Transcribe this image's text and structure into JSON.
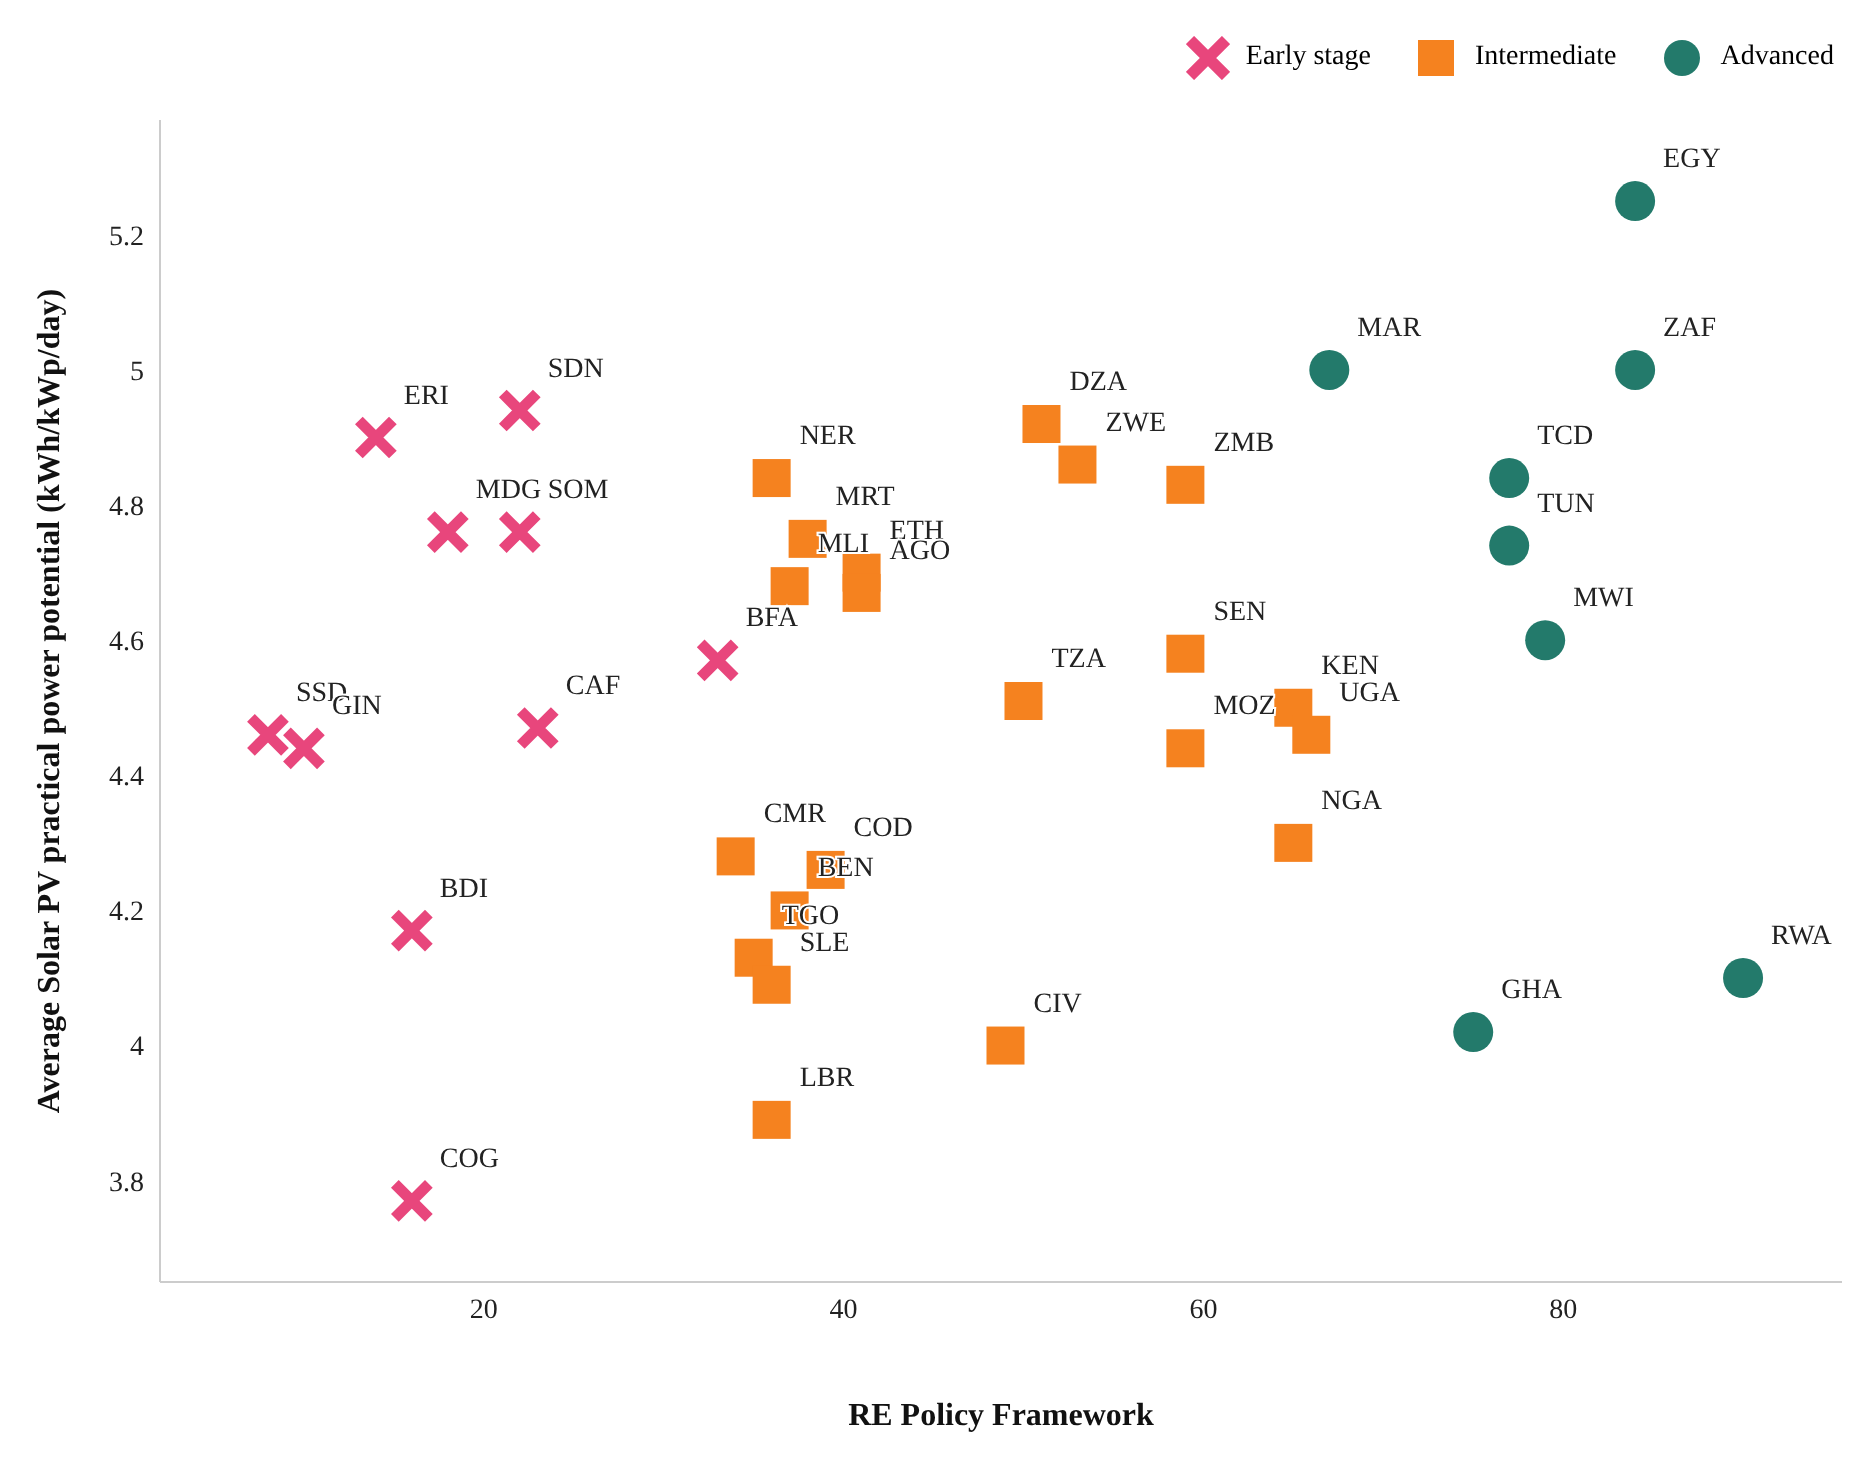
{
  "chart_data": {
    "type": "scatter",
    "xlabel": "RE Policy Framework",
    "ylabel": "Average Solar PV practical power potential (kWh/kWp/day)",
    "xlim": [
      2,
      95.5
    ],
    "ylim": [
      3.65,
      5.37
    ],
    "xticks": [
      20,
      40,
      60,
      80
    ],
    "yticks": [
      3.8,
      4,
      4.2,
      4.4,
      4.6,
      4.8,
      5,
      5.2
    ],
    "grid": false,
    "legend": "top right",
    "series": [
      {
        "name": "Early stage",
        "color": "#e8467c",
        "marker": "cross",
        "x": [
          14,
          22,
          18,
          22,
          33,
          8,
          10,
          23,
          16,
          16
        ],
        "values": [
          4.9,
          4.94,
          4.76,
          4.76,
          4.57,
          4.46,
          4.44,
          4.47,
          4.17,
          3.77
        ]
      },
      {
        "name": "Intermediate",
        "color": "#f5821f",
        "marker": "square",
        "x": [
          36,
          38,
          37,
          41,
          41,
          51,
          53,
          59,
          59,
          50,
          65,
          66,
          59,
          65,
          34,
          39,
          37,
          35,
          36,
          36,
          49
        ],
        "values": [
          4.84,
          4.75,
          4.68,
          4.7,
          4.67,
          4.92,
          4.86,
          4.83,
          4.58,
          4.51,
          4.5,
          4.46,
          4.44,
          4.3,
          4.28,
          4.26,
          4.2,
          4.13,
          4.09,
          3.89,
          4.0
        ]
      },
      {
        "name": "Advanced",
        "color": "#237a6b",
        "marker": "circle",
        "x": [
          84,
          67,
          84,
          77,
          77,
          79,
          75,
          90
        ],
        "values": [
          5.25,
          5.0,
          5.0,
          4.84,
          4.74,
          4.6,
          4.02,
          4.1
        ]
      }
    ],
    "annotations": [
      {
        "text": "ERI",
        "x": 14,
        "y": 4.9
      },
      {
        "text": "SDN",
        "x": 22,
        "y": 4.94
      },
      {
        "text": "MDG",
        "x": 18,
        "y": 4.76
      },
      {
        "text": "SOM",
        "x": 22,
        "y": 4.76
      },
      {
        "text": "BFA",
        "x": 33,
        "y": 4.57
      },
      {
        "text": "SSD",
        "x": 8,
        "y": 4.46
      },
      {
        "text": "GIN",
        "x": 10,
        "y": 4.44
      },
      {
        "text": "CAF",
        "x": 23,
        "y": 4.47
      },
      {
        "text": "BDI",
        "x": 16,
        "y": 4.17
      },
      {
        "text": "COG",
        "x": 16,
        "y": 3.77
      },
      {
        "text": "NER",
        "x": 36,
        "y": 4.84
      },
      {
        "text": "MRT",
        "x": 38,
        "y": 4.75
      },
      {
        "text": "MLI",
        "x": 37,
        "y": 4.68
      },
      {
        "text": "ETH",
        "x": 41,
        "y": 4.7
      },
      {
        "text": "AGO",
        "x": 41,
        "y": 4.67
      },
      {
        "text": "DZA",
        "x": 51,
        "y": 4.92
      },
      {
        "text": "ZWE",
        "x": 53,
        "y": 4.86
      },
      {
        "text": "ZMB",
        "x": 59,
        "y": 4.83
      },
      {
        "text": "SEN",
        "x": 59,
        "y": 4.58
      },
      {
        "text": "TZA",
        "x": 50,
        "y": 4.51
      },
      {
        "text": "KEN",
        "x": 65,
        "y": 4.5
      },
      {
        "text": "UGA",
        "x": 66,
        "y": 4.46
      },
      {
        "text": "MOZ",
        "x": 59,
        "y": 4.44
      },
      {
        "text": "NGA",
        "x": 65,
        "y": 4.3
      },
      {
        "text": "CMR",
        "x": 34,
        "y": 4.28
      },
      {
        "text": "COD",
        "x": 39,
        "y": 4.26
      },
      {
        "text": "BEN",
        "x": 37,
        "y": 4.2
      },
      {
        "text": "TGO",
        "x": 35,
        "y": 4.13
      },
      {
        "text": "SLE",
        "x": 36,
        "y": 4.09
      },
      {
        "text": "LBR",
        "x": 36,
        "y": 3.89
      },
      {
        "text": "CIV",
        "x": 49,
        "y": 4.0
      },
      {
        "text": "EGY",
        "x": 84,
        "y": 5.25
      },
      {
        "text": "MAR",
        "x": 67,
        "y": 5.0
      },
      {
        "text": "ZAF",
        "x": 84,
        "y": 5.0
      },
      {
        "text": "TCD",
        "x": 77,
        "y": 4.84
      },
      {
        "text": "TUN",
        "x": 77,
        "y": 4.74
      },
      {
        "text": "MWI",
        "x": 79,
        "y": 4.6
      },
      {
        "text": "GHA",
        "x": 75,
        "y": 4.02
      },
      {
        "text": "RWA",
        "x": 90,
        "y": 4.1
      }
    ]
  }
}
